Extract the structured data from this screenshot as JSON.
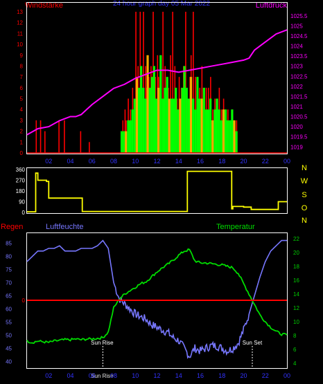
{
  "header": {
    "left_label": "Windstärke",
    "center_label": "24 hour graph day 05 Mar 2022",
    "right_label": "Luftdruck"
  },
  "colors": {
    "background": "#000000",
    "axis": "#ffffff",
    "grid": "#555555",
    "wind_gust": "#ff0000",
    "wind_avg": "#00ff00",
    "wind_avg_dark": "#ffaa00",
    "pressure": "#ff00ff",
    "direction": "#ffff00",
    "humidity": "#7777ff",
    "temperature": "#00dd00",
    "rain": "#ff0000",
    "left_tick": "#ff0000",
    "right_tick": "#ff00ff",
    "right_tick_temp": "#00cc00",
    "left_tick_hum": "#7777ff",
    "x_tick": "#3333ff",
    "sun_marker": "#ffffff"
  },
  "chart_data": [
    {
      "type": "bar",
      "id": "wind",
      "title": "24 hour graph day 05 Mar 2022",
      "ylabel": "Windstärke",
      "y2label": "Luftdruck",
      "x_ticks": [
        "02",
        "04",
        "06",
        "08",
        "10",
        "12",
        "14",
        "16",
        "18",
        "20",
        "22",
        "00"
      ],
      "y_ticks": [
        0,
        1,
        2,
        3,
        4,
        5,
        6,
        7,
        8,
        9,
        10,
        11,
        12,
        13
      ],
      "ylim": [
        0,
        13
      ],
      "y2_ticks": [
        "1019",
        "1019.5",
        "1020",
        "1020.5",
        "1021",
        "1021.5",
        "1022",
        "1022.5",
        "1023",
        "1023.5",
        "1024",
        "1024.5",
        "1025",
        "1025.5"
      ],
      "y2lim": [
        1018.7,
        1025.7
      ],
      "series": [
        {
          "kind": "gust_bars",
          "x_hours": [
            0.8,
            1.2,
            1.6,
            2.9,
            3.4,
            4.9,
            5.7,
            8.8,
            9.0,
            9.1,
            9.3,
            9.5,
            9.7,
            10.0,
            10.2,
            10.4,
            10.6,
            10.7,
            10.9,
            11.0,
            11.2,
            11.4,
            11.6,
            11.8,
            12.0,
            12.1,
            12.3,
            12.5,
            12.7,
            12.9,
            13.0,
            13.2,
            13.4,
            13.6,
            13.8,
            14.0,
            14.2,
            14.4,
            14.6,
            14.8,
            15.0,
            15.1,
            15.3,
            15.5,
            15.7,
            15.9,
            16.1,
            16.3,
            16.5,
            16.7,
            16.9,
            17.1,
            17.3,
            17.5,
            17.7,
            17.9,
            18.1,
            18.3,
            18.5,
            18.7,
            18.9,
            19.1,
            19.3
          ],
          "values": [
            3,
            3,
            2,
            3,
            3,
            2,
            1,
            3,
            4,
            3,
            5,
            4,
            6,
            13,
            8,
            13,
            5,
            13,
            8,
            6,
            7,
            8,
            13,
            7,
            9,
            7,
            5,
            13,
            8,
            6,
            6,
            9,
            13,
            8,
            5,
            7,
            6,
            8,
            13,
            5,
            7,
            9,
            13,
            7,
            5,
            6,
            8,
            5,
            6,
            6,
            7,
            4,
            5,
            5,
            6,
            4,
            5,
            4,
            4,
            3,
            4,
            3,
            3
          ]
        },
        {
          "kind": "avg_bars",
          "x_hours": [
            8.7,
            8.9,
            9.1,
            9.3,
            9.5,
            9.7,
            9.9,
            10.1,
            10.3,
            10.5,
            10.7,
            10.9,
            11.1,
            11.3,
            11.5,
            11.7,
            11.9,
            12.1,
            12.3,
            12.5,
            12.7,
            12.9,
            13.1,
            13.3,
            13.5,
            13.7,
            13.9,
            14.1,
            14.3,
            14.5,
            14.7,
            14.9,
            15.1,
            15.3,
            15.5,
            15.7,
            15.9,
            16.1,
            16.3,
            16.5,
            16.7,
            16.9,
            17.1,
            17.3,
            17.5,
            17.7,
            17.9,
            18.1,
            18.3,
            18.5,
            18.7,
            18.9,
            19.1,
            19.3
          ],
          "values": [
            2,
            2,
            2,
            3,
            3,
            4,
            5,
            7,
            6,
            8,
            6,
            5,
            9,
            6,
            7,
            8,
            5,
            6,
            9,
            5,
            6,
            7,
            5,
            5,
            5,
            6,
            4,
            5,
            6,
            8,
            6,
            5,
            7,
            5,
            4,
            7,
            5,
            5,
            6,
            4,
            4,
            5,
            3,
            4,
            5,
            4,
            3,
            4,
            4,
            3,
            3,
            4,
            3,
            2
          ]
        },
        {
          "kind": "pressure_line",
          "x_hours": [
            0,
            1,
            2,
            3,
            4,
            4.5,
            5,
            6,
            7,
            8,
            9,
            10,
            11,
            12,
            13,
            14,
            15,
            16,
            17,
            18,
            19,
            20,
            20.5,
            21,
            22,
            23,
            24
          ],
          "values": [
            1019.6,
            1019.9,
            1020.0,
            1020.3,
            1020.5,
            1020.5,
            1020.6,
            1021.1,
            1021.5,
            1021.9,
            1022.1,
            1022.4,
            1022.6,
            1022.8,
            1022.8,
            1022.7,
            1022.8,
            1022.9,
            1023.0,
            1023.1,
            1023.2,
            1023.3,
            1023.4,
            1023.8,
            1024.2,
            1024.6,
            1024.8
          ]
        }
      ]
    },
    {
      "type": "line",
      "id": "direction",
      "y_ticks": [
        0,
        90,
        180,
        270,
        360
      ],
      "ylim": [
        0,
        360
      ],
      "right_labels": [
        "N",
        "W",
        "S",
        "O",
        "N"
      ],
      "series": [
        {
          "kind": "direction_line",
          "x_hours": [
            0.0,
            0.8,
            0.8,
            1.0,
            1.0,
            1.8,
            1.8,
            2.0,
            2.0,
            5.1,
            5.1,
            14.8,
            14.8,
            15.2,
            15.2,
            15.9,
            15.9,
            18.9,
            18.9,
            19.0,
            19.0,
            19.9,
            19.9,
            20.0,
            20.0,
            20.7,
            20.7,
            22.3,
            22.3,
            23.2,
            23.2,
            24.0
          ],
          "values": [
            5,
            5,
            330,
            330,
            270,
            270,
            260,
            260,
            120,
            120,
            8,
            8,
            345,
            345,
            345,
            345,
            345,
            345,
            30,
            30,
            50,
            50,
            50,
            50,
            45,
            45,
            25,
            25,
            25,
            25,
            90,
            90
          ]
        }
      ]
    },
    {
      "type": "line",
      "id": "humidity_temperature",
      "left_title": "Regen",
      "humidity_label": "Luftfeuchte",
      "temperature_label": "Temperatur",
      "x_ticks": [
        "02",
        "04",
        "06",
        "08",
        "10",
        "12",
        "14",
        "16",
        "18",
        "20",
        "22",
        "00"
      ],
      "humidity_ticks": [
        40,
        45,
        50,
        55,
        60,
        65,
        70,
        75,
        80,
        85
      ],
      "humidity_lim": [
        38,
        88
      ],
      "temperature_ticks": [
        4,
        6,
        8,
        10,
        12,
        14,
        16,
        18,
        20,
        22
      ],
      "temperature_lim": [
        3.5,
        22.5
      ],
      "rain_value": 0,
      "sun_rise_hour": 7.0,
      "sun_set_hour": 20.8,
      "sun_rise_label": "Sun Rise",
      "sun_set_label": "Sun Set",
      "sun_rise_time_label": "Sun Rise",
      "series": [
        {
          "kind": "humidity_line",
          "x_hours": [
            0.0,
            0.5,
            1.0,
            1.5,
            2.0,
            2.5,
            3.0,
            3.5,
            4.0,
            4.5,
            5.0,
            5.5,
            6.0,
            6.5,
            7.0,
            7.5,
            8.0,
            8.5,
            9.0,
            9.5,
            10.0,
            10.5,
            11.0,
            11.5,
            12.0,
            12.5,
            13.0,
            13.5,
            14.0,
            14.5,
            15.0,
            15.5,
            16.0,
            16.5,
            17.0,
            17.5,
            18.0,
            18.5,
            19.0,
            19.5,
            20.0,
            20.5,
            21.0,
            21.5,
            22.0,
            22.5,
            23.0,
            23.5,
            24.0
          ],
          "values": [
            78,
            80,
            82,
            82,
            83,
            83,
            84,
            82,
            82,
            82,
            83,
            83,
            83,
            84,
            86,
            83,
            70,
            64,
            62,
            60,
            58,
            57,
            56,
            54,
            53,
            52,
            51,
            49,
            48,
            45,
            42,
            45,
            44,
            45,
            46,
            46,
            45,
            44,
            45,
            47,
            52,
            58,
            65,
            72,
            78,
            82,
            84,
            86,
            86
          ]
        },
        {
          "kind": "temperature_line",
          "x_hours": [
            0.0,
            0.5,
            1.0,
            1.5,
            2.0,
            2.5,
            3.0,
            3.5,
            4.0,
            4.5,
            5.0,
            5.5,
            6.0,
            6.5,
            7.0,
            7.5,
            8.0,
            8.5,
            9.0,
            9.5,
            10.0,
            10.5,
            11.0,
            11.5,
            12.0,
            12.5,
            13.0,
            13.5,
            14.0,
            14.5,
            15.0,
            15.5,
            16.0,
            16.5,
            17.0,
            17.5,
            18.0,
            18.5,
            19.0,
            19.5,
            20.0,
            20.5,
            21.0,
            21.5,
            22.0,
            22.5,
            23.0,
            23.5,
            24.0
          ],
          "values": [
            7.2,
            7.0,
            7.2,
            7.1,
            7.0,
            7.2,
            7.3,
            7.4,
            7.4,
            7.5,
            7.4,
            7.5,
            7.5,
            7.6,
            7.7,
            8.5,
            12.0,
            13.2,
            14.0,
            14.5,
            15.0,
            15.5,
            15.8,
            16.5,
            17.2,
            17.8,
            18.3,
            18.9,
            19.6,
            20.2,
            20.4,
            18.8,
            18.5,
            18.5,
            18.4,
            18.3,
            18.2,
            18.0,
            17.8,
            17.0,
            15.5,
            14.0,
            12.5,
            11.0,
            10.0,
            9.2,
            8.6,
            8.2,
            8.1
          ]
        }
      ]
    }
  ]
}
